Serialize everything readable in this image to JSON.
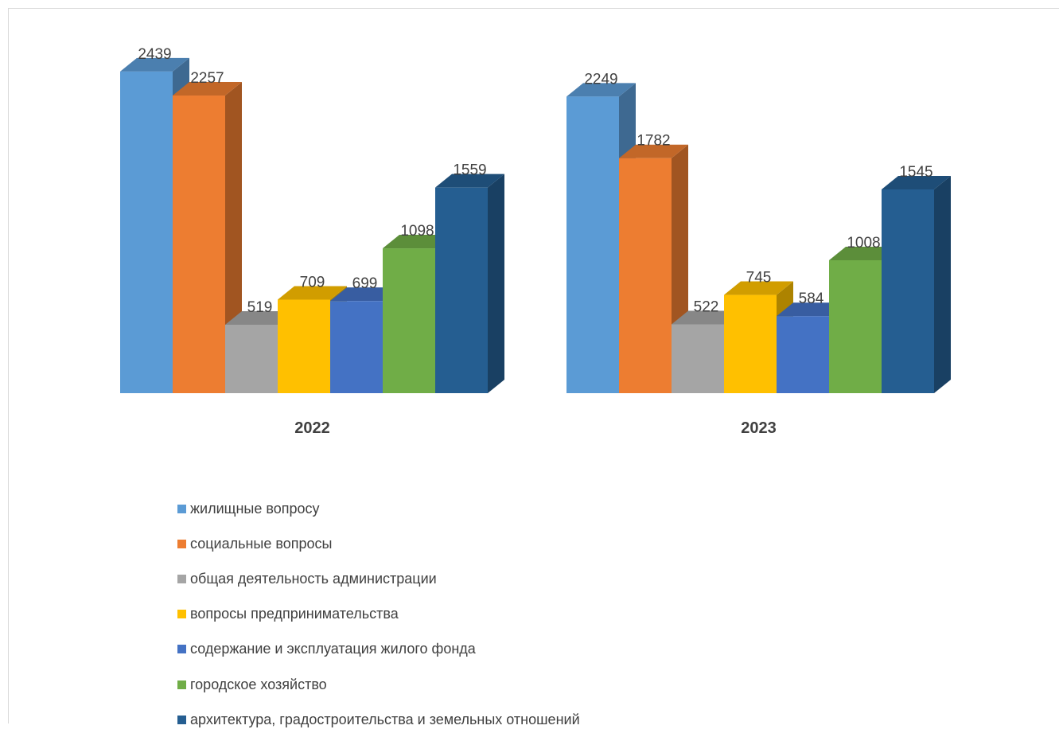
{
  "chart_data": {
    "type": "bar",
    "style": "3d-clustered-column",
    "categories": [
      "2022",
      "2023"
    ],
    "series": [
      {
        "name": "жилищные вопросу",
        "color": "#5B9BD5",
        "values": [
          2439,
          2249
        ]
      },
      {
        "name": "социальные вопросы",
        "color": "#ED7D31",
        "values": [
          2257,
          1782
        ]
      },
      {
        "name": "общая деятельность администрации",
        "color": "#A5A5A5",
        "values": [
          519,
          522
        ]
      },
      {
        "name": "вопросы предпринимательства",
        "color": "#FFC000",
        "values": [
          709,
          745
        ]
      },
      {
        "name": "содержание и эксплуатация жилого фонда",
        "color": "#4472C4",
        "values": [
          699,
          584
        ]
      },
      {
        "name": "городское хозяйство",
        "color": "#70AD47",
        "values": [
          1098,
          1008
        ]
      },
      {
        "name": "архитектура, градостроительства и земельных отношений",
        "color": "#255E91",
        "values": [
          1559,
          1545
        ]
      }
    ],
    "ylim": [
      0,
      2500
    ],
    "grid": false,
    "data_labels": true,
    "legend_position": "bottom"
  }
}
